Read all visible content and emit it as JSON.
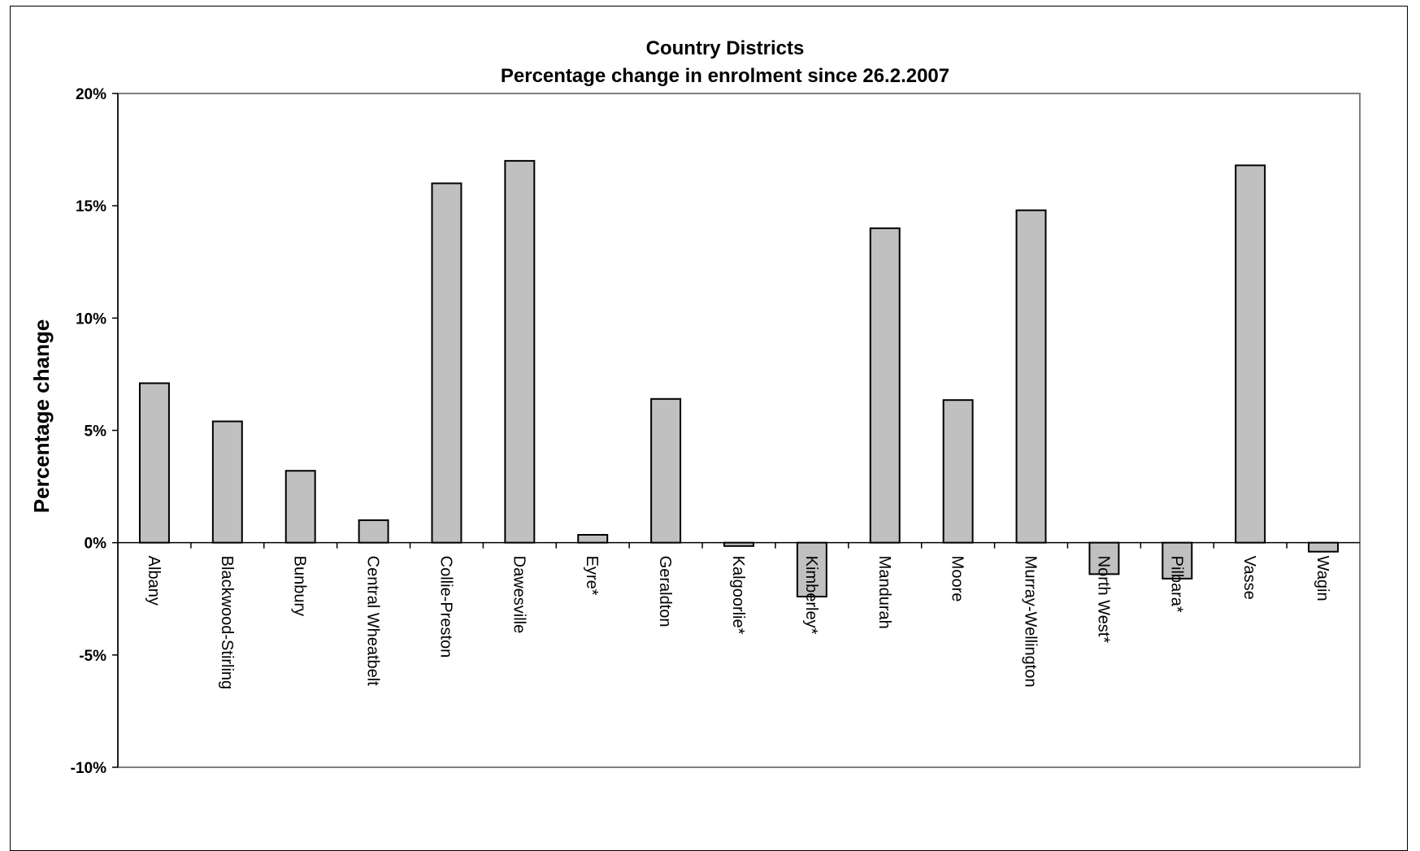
{
  "chart_data": {
    "type": "bar",
    "title": "Country Districts",
    "subtitle": "Percentage change in enrolment since 26.2.2007",
    "xlabel": "",
    "ylabel": "Percentage change",
    "ylim": [
      -10,
      20
    ],
    "yticks": [
      20,
      15,
      10,
      5,
      0,
      -5,
      -10
    ],
    "ytick_labels": [
      "20%",
      "15%",
      "10%",
      "5%",
      "0%",
      "-5%",
      "-10%"
    ],
    "categories": [
      "Albany",
      "Blackwood-Stirling",
      "Bunbury",
      "Central Wheatbelt",
      "Collie-Preston",
      "Dawesville",
      "Eyre*",
      "Geraldton",
      "Kalgoorlie*",
      "Kimberley*",
      "Mandurah",
      "Moore",
      "Murray-Wellington",
      "North West*",
      "Pilbara*",
      "Vasse",
      "Wagin"
    ],
    "values": [
      7.1,
      5.4,
      3.2,
      1.0,
      16.0,
      17.0,
      0.35,
      6.4,
      -0.15,
      -2.4,
      14.0,
      6.35,
      14.8,
      -1.4,
      -1.6,
      16.8,
      -0.4
    ],
    "bar_color": "#c0c0c0",
    "plot_border_color": "#808080",
    "grid": false,
    "legend": "none"
  }
}
